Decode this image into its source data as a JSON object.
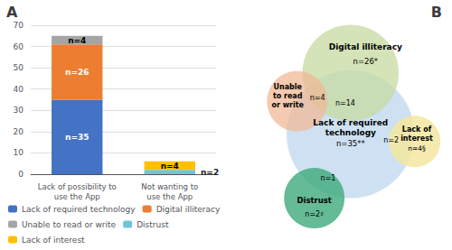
{
  "chart_data": [
    {
      "type": "bar",
      "title": "A",
      "categories": [
        "Lack of possibility to\nuse the App",
        "Not wanting to\nuse the App"
      ],
      "stacked": true,
      "data_labels": true,
      "grid": true,
      "legend": "bottom",
      "ylim": [
        0,
        70
      ],
      "yticks": [
        0,
        10,
        20,
        30,
        40,
        50,
        60,
        70
      ],
      "series": [
        {
          "name": "Lack of required technology",
          "color": "#4472C4",
          "values": [
            35,
            0
          ],
          "value_labels": [
            "n=35",
            null
          ]
        },
        {
          "name": "Digital illiteracy",
          "color": "#ED7D31",
          "values": [
            26,
            0
          ],
          "value_labels": [
            "n=26",
            null
          ]
        },
        {
          "name": "Unable to read or write",
          "color": "#A5A5A5",
          "values": [
            4,
            0
          ],
          "value_labels": [
            "n=4",
            null
          ]
        },
        {
          "name": "Distrust",
          "color": "#70C4D8",
          "values": [
            0,
            2
          ],
          "value_labels": [
            null,
            "n=2"
          ]
        },
        {
          "name": "Lack of interest",
          "color": "#FFC000",
          "values": [
            0,
            4
          ],
          "value_labels": [
            null,
            "n=4"
          ]
        }
      ]
    },
    {
      "type": "venn",
      "title": "B",
      "sets": [
        {
          "name": "Digital illiteracy",
          "label": "n=26*",
          "color": "#C5D9A0"
        },
        {
          "name": "Unable\nto read\nor write",
          "color": "#F0B896"
        },
        {
          "name": "Lack of required\ntechnology",
          "label": "n=35**",
          "color": "#BDD7EE"
        },
        {
          "name": "Distrust",
          "label": "n=2♯",
          "color": "#3DAA7A"
        },
        {
          "name": "Lack of\ninterest",
          "label": "n=4§",
          "color": "#F5E6A0"
        }
      ],
      "intersections": [
        {
          "sets": [
            "Digital illiteracy",
            "Unable\nto read\nor write",
            "Lack of required\ntechnology"
          ],
          "label": "n=4"
        },
        {
          "sets": [
            "Digital illiteracy",
            "Lack of required\ntechnology"
          ],
          "label": "n=14"
        },
        {
          "sets": [
            "Distrust",
            "Lack of required\ntechnology"
          ],
          "label": "n=1"
        },
        {
          "sets": [
            "Lack of required\ntechnology",
            "Lack of\ninterest"
          ],
          "label": "n=2"
        }
      ]
    }
  ]
}
